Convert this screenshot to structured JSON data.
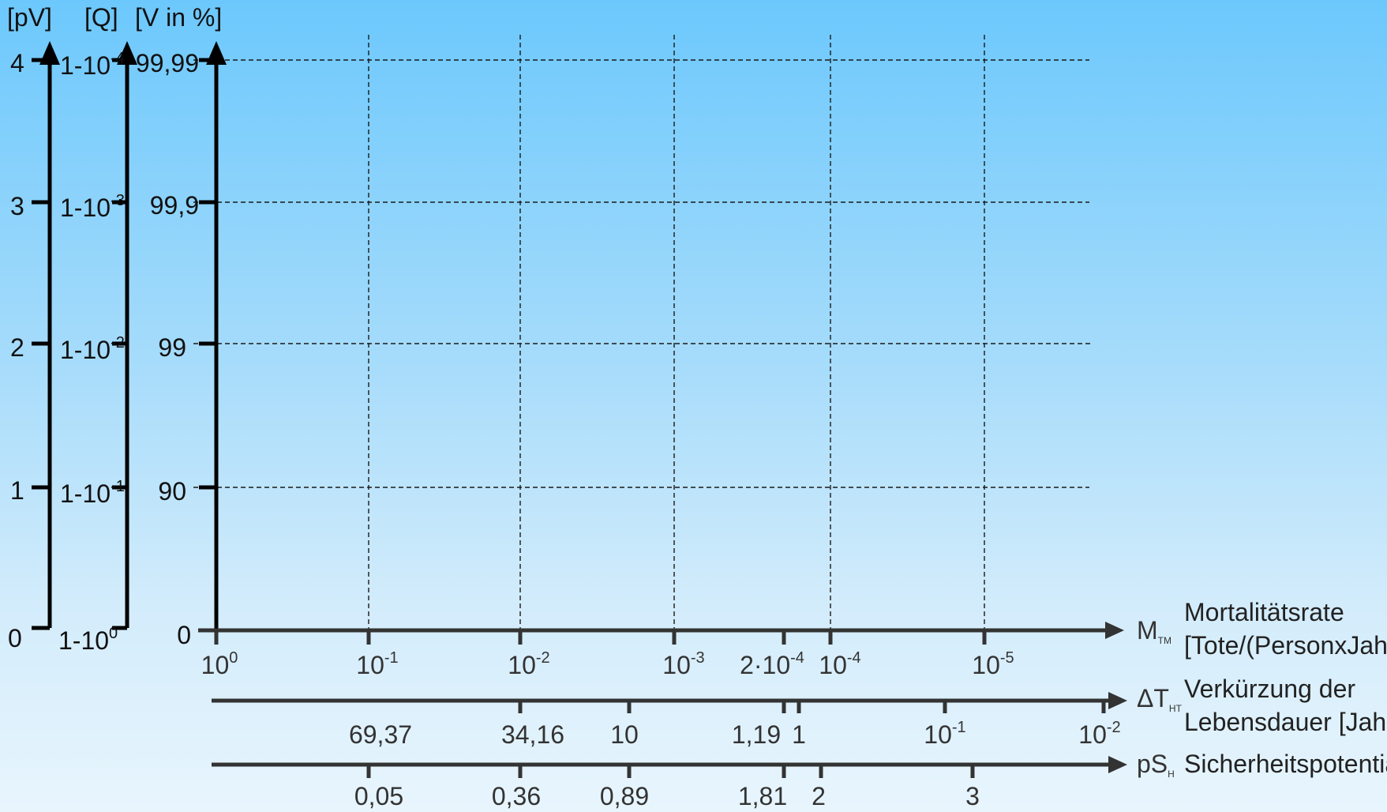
{
  "axes_headers": {
    "pv": "[pV]",
    "q": "[Q]",
    "v": "[V in %]"
  },
  "pv_ticks": [
    "0",
    "1",
    "2",
    "3",
    "4"
  ],
  "q_ticks": [
    {
      "base": "1-10",
      "exp": "0"
    },
    {
      "base": "1-10",
      "exp": "-1"
    },
    {
      "base": "1-10",
      "exp": "-2"
    },
    {
      "base": "1-10",
      "exp": "-3"
    },
    {
      "base": "1-10",
      "exp": "-4"
    }
  ],
  "v_ticks": [
    "0",
    "90",
    "99",
    "99,9",
    "99,99"
  ],
  "mortality_axis": {
    "symbol": "M",
    "symbol_sub": "TM",
    "desc_line1": "Mortalitätsrate",
    "desc_line2": "[Tote/(PersonxJahr)]",
    "ticks": [
      {
        "pre": "",
        "base": "10",
        "exp": "0"
      },
      {
        "pre": "",
        "base": "10",
        "exp": "-1"
      },
      {
        "pre": "",
        "base": "10",
        "exp": "-2"
      },
      {
        "pre": "",
        "base": "10",
        "exp": "-3"
      },
      {
        "pre": "2·",
        "base": "10",
        "exp": "-4"
      },
      {
        "pre": "",
        "base": "10",
        "exp": "-4"
      },
      {
        "pre": "",
        "base": "10",
        "exp": "-5"
      }
    ]
  },
  "lifespan_axis": {
    "symbol": "ΔT",
    "symbol_sub": "HT",
    "desc_line1": "Verkürzung der",
    "desc_line2": "Lebensdauer [Jahre]",
    "ticks": [
      {
        "base": "69,37",
        "exp": ""
      },
      {
        "base": "34,16",
        "exp": ""
      },
      {
        "base": "10",
        "exp": ""
      },
      {
        "base": "1,19",
        "exp": ""
      },
      {
        "base": "1",
        "exp": ""
      },
      {
        "base": "10",
        "exp": "-1"
      },
      {
        "base": "10",
        "exp": "-2"
      }
    ]
  },
  "safety_axis": {
    "symbol": "pS",
    "symbol_sub": "H",
    "desc_line1": "Sicherheitspotential",
    "ticks": [
      "0,05",
      "0,36",
      "0,89",
      "1,81",
      "2",
      "3"
    ]
  },
  "colors": {
    "axis": "#000000",
    "grid": "#1a1a1a",
    "bottom_axis": "#333333"
  }
}
